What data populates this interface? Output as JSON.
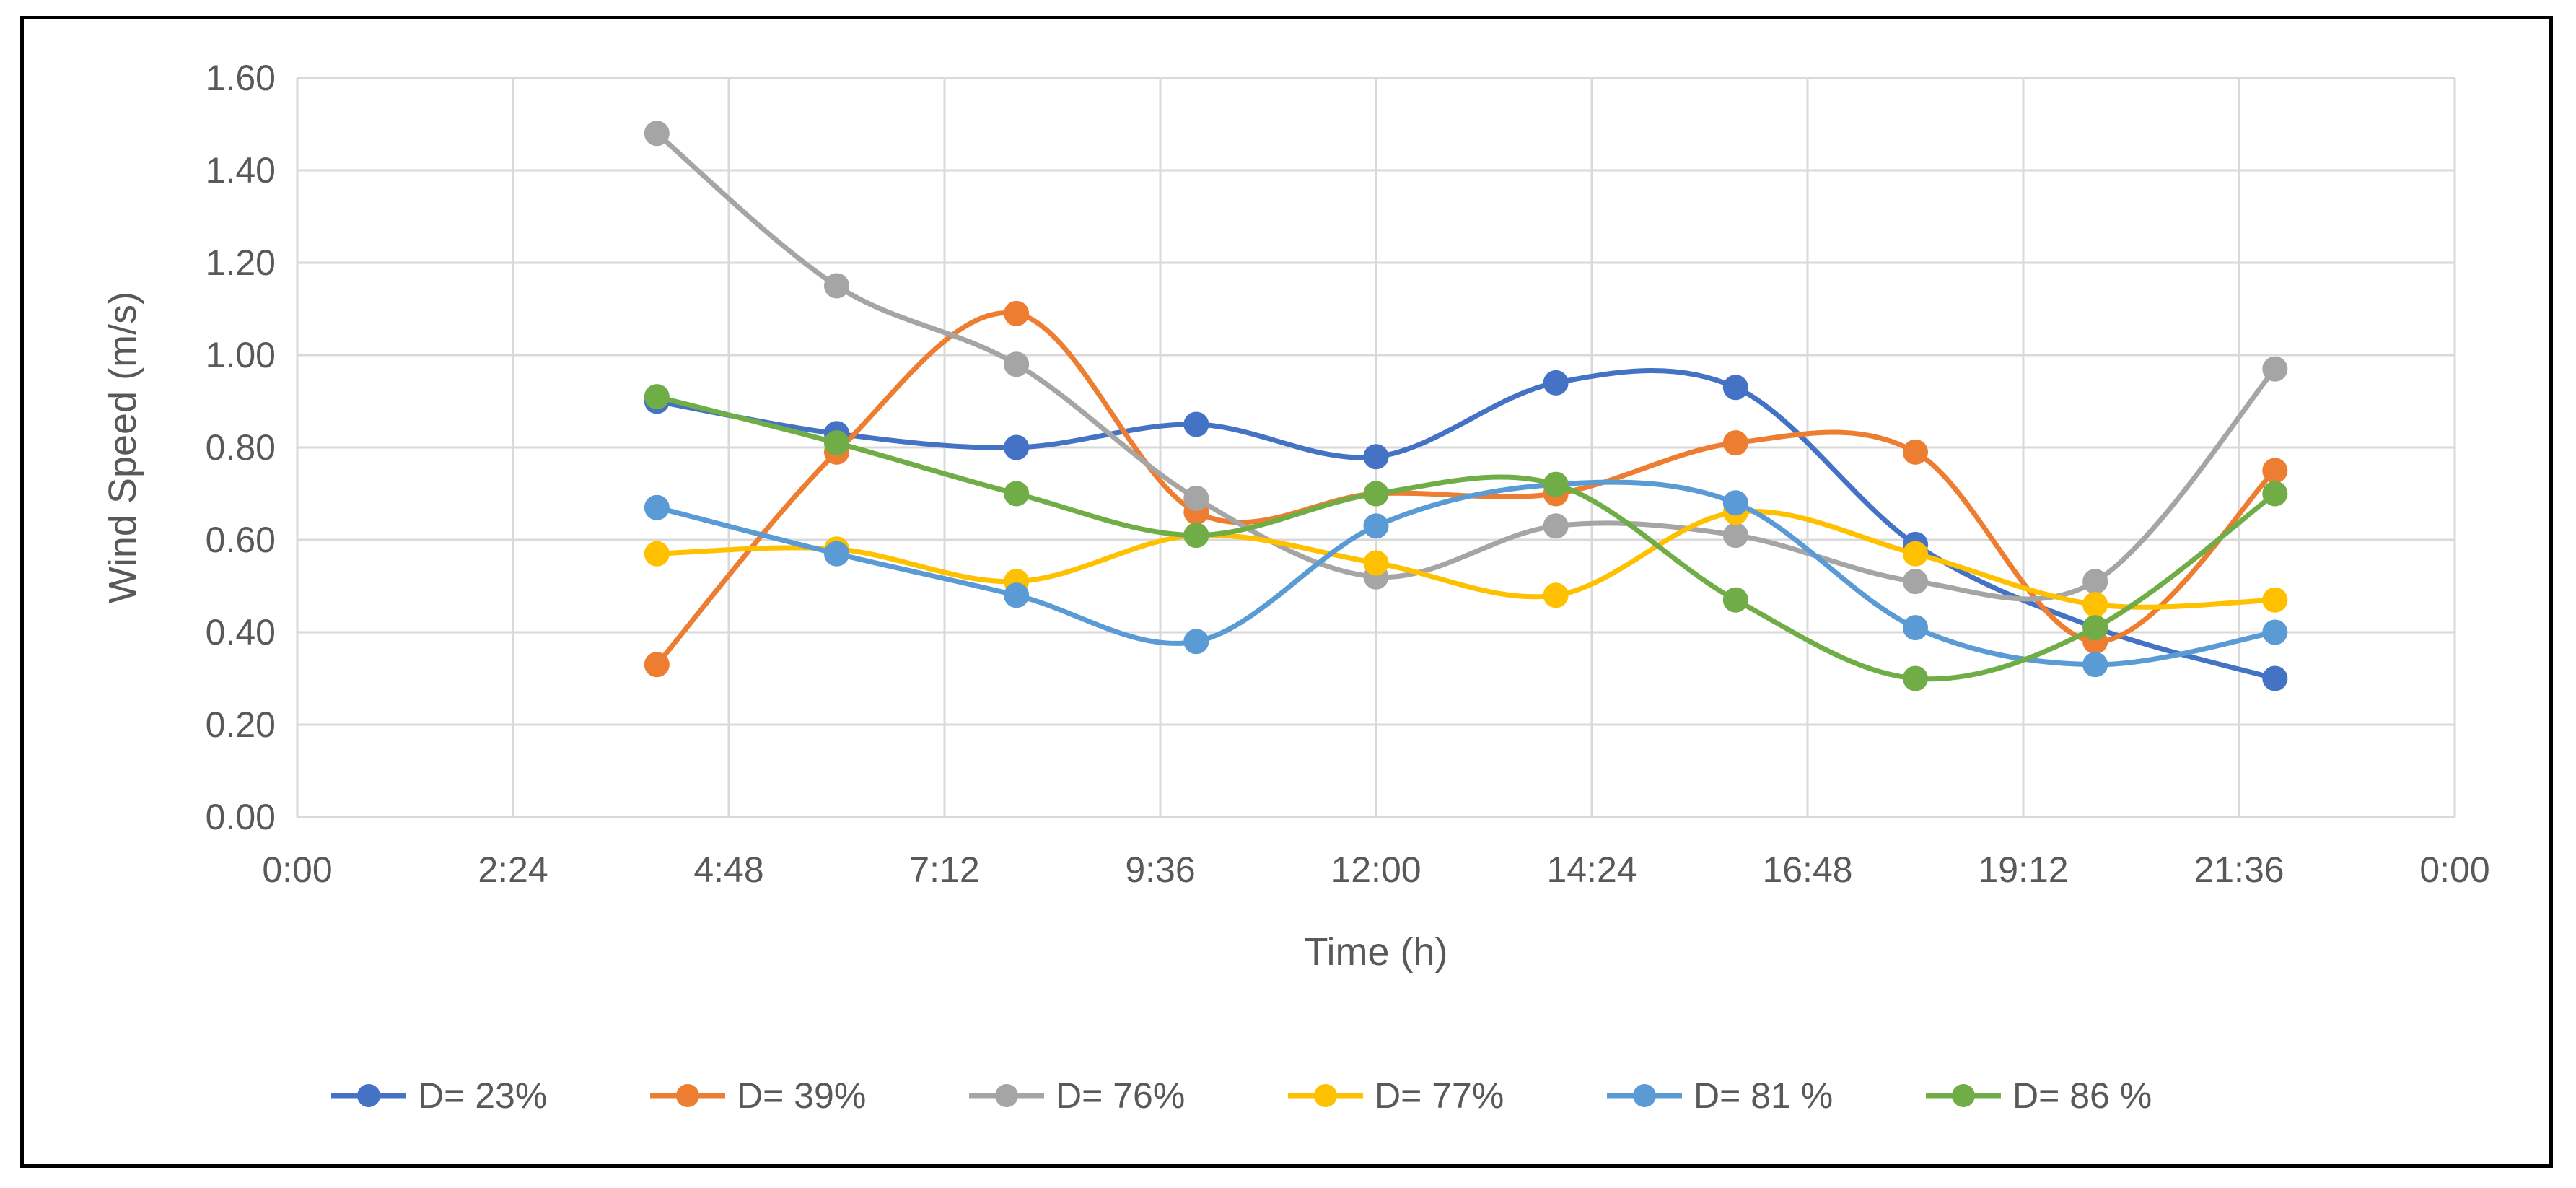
{
  "chart_data": {
    "type": "line",
    "smooth": true,
    "xlabel": "Time (h)",
    "ylabel": "Wind Speed (m/s)",
    "x_ticks": [
      "0:00",
      "2:24",
      "4:48",
      "7:12",
      "9:36",
      "12:00",
      "14:24",
      "16:48",
      "19:12",
      "21:36",
      "0:00"
    ],
    "x_tick_hours": [
      0,
      2.4,
      4.8,
      7.2,
      9.6,
      12,
      14.4,
      16.8,
      19.2,
      21.6,
      24
    ],
    "xlim_hours": [
      0,
      24
    ],
    "y_ticks": [
      "0.00",
      "0.20",
      "0.40",
      "0.60",
      "0.80",
      "1.00",
      "1.20",
      "1.40",
      "1.60"
    ],
    "ylim": [
      0,
      1.6
    ],
    "grid": true,
    "legend_position": "bottom",
    "x_hours": [
      4,
      6,
      8,
      10,
      12,
      14,
      16,
      18,
      20,
      22
    ],
    "series": [
      {
        "name": "D= 23%",
        "color": "#4472C4",
        "values": [
          0.9,
          0.83,
          0.8,
          0.85,
          0.78,
          0.94,
          0.93,
          0.59,
          0.41,
          0.3
        ]
      },
      {
        "name": "D= 39%",
        "color": "#ED7D31",
        "values": [
          0.33,
          0.79,
          1.09,
          0.66,
          0.7,
          0.7,
          0.81,
          0.79,
          0.38,
          0.75
        ]
      },
      {
        "name": "D= 76%",
        "color": "#A5A5A5",
        "values": [
          1.48,
          1.15,
          0.98,
          0.69,
          0.52,
          0.63,
          0.61,
          0.51,
          0.51,
          0.97
        ]
      },
      {
        "name": "D= 77%",
        "color": "#FFC000",
        "values": [
          0.57,
          0.58,
          0.51,
          0.61,
          0.55,
          0.48,
          0.66,
          0.57,
          0.46,
          0.47
        ]
      },
      {
        "name": "D= 81 %",
        "color": "#5B9BD5",
        "values": [
          0.67,
          0.57,
          0.48,
          0.38,
          0.63,
          0.72,
          0.68,
          0.41,
          0.33,
          0.4
        ]
      },
      {
        "name": "D= 86 %",
        "color": "#70AD47",
        "values": [
          0.91,
          0.81,
          0.7,
          0.61,
          0.7,
          0.72,
          0.47,
          0.3,
          0.41,
          0.7
        ]
      }
    ]
  }
}
